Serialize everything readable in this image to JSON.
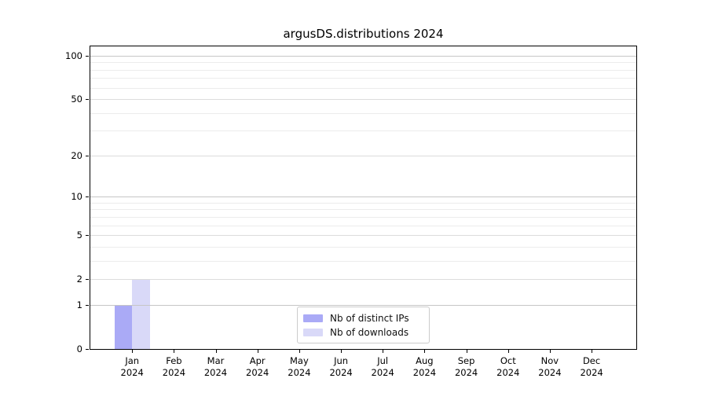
{
  "figure": {
    "background": "#ffffff"
  },
  "chart_data": {
    "type": "bar",
    "title": "argusDS.distributions 2024",
    "x_tick_labels": [
      [
        "Jan",
        "2024"
      ],
      [
        "Feb",
        "2024"
      ],
      [
        "Mar",
        "2024"
      ],
      [
        "Apr",
        "2024"
      ],
      [
        "May",
        "2024"
      ],
      [
        "Jun",
        "2024"
      ],
      [
        "Jul",
        "2024"
      ],
      [
        "Aug",
        "2024"
      ],
      [
        "Sep",
        "2024"
      ],
      [
        "Oct",
        "2024"
      ],
      [
        "Nov",
        "2024"
      ],
      [
        "Dec",
        "2024"
      ]
    ],
    "series": [
      {
        "name": "Nb of distinct IPs",
        "color": "#aaaaf6",
        "values": [
          1,
          0,
          0,
          0,
          0,
          0,
          0,
          0,
          0,
          0,
          0,
          0
        ]
      },
      {
        "name": "Nb of downloads",
        "color": "#d9d9f8",
        "values": [
          2,
          0,
          0,
          0,
          0,
          0,
          0,
          0,
          0,
          0,
          0,
          0
        ]
      }
    ],
    "yscale": "log1p",
    "ylim": [
      0,
      116
    ],
    "yticks": [
      0,
      1,
      2,
      5,
      10,
      20,
      50,
      100
    ],
    "minor_yticks": [
      3,
      4,
      6,
      7,
      8,
      9,
      30,
      40,
      60,
      70,
      80,
      90
    ],
    "grid": "horizontal",
    "legend": {
      "position": "lower center",
      "entries": [
        "Nb of distinct IPs",
        "Nb of downloads"
      ]
    },
    "colors": {
      "spine": "#000000",
      "grid_decade": "#c6c6c6",
      "grid_major": "#dcdcdc",
      "grid_minor": "#ececec"
    }
  }
}
